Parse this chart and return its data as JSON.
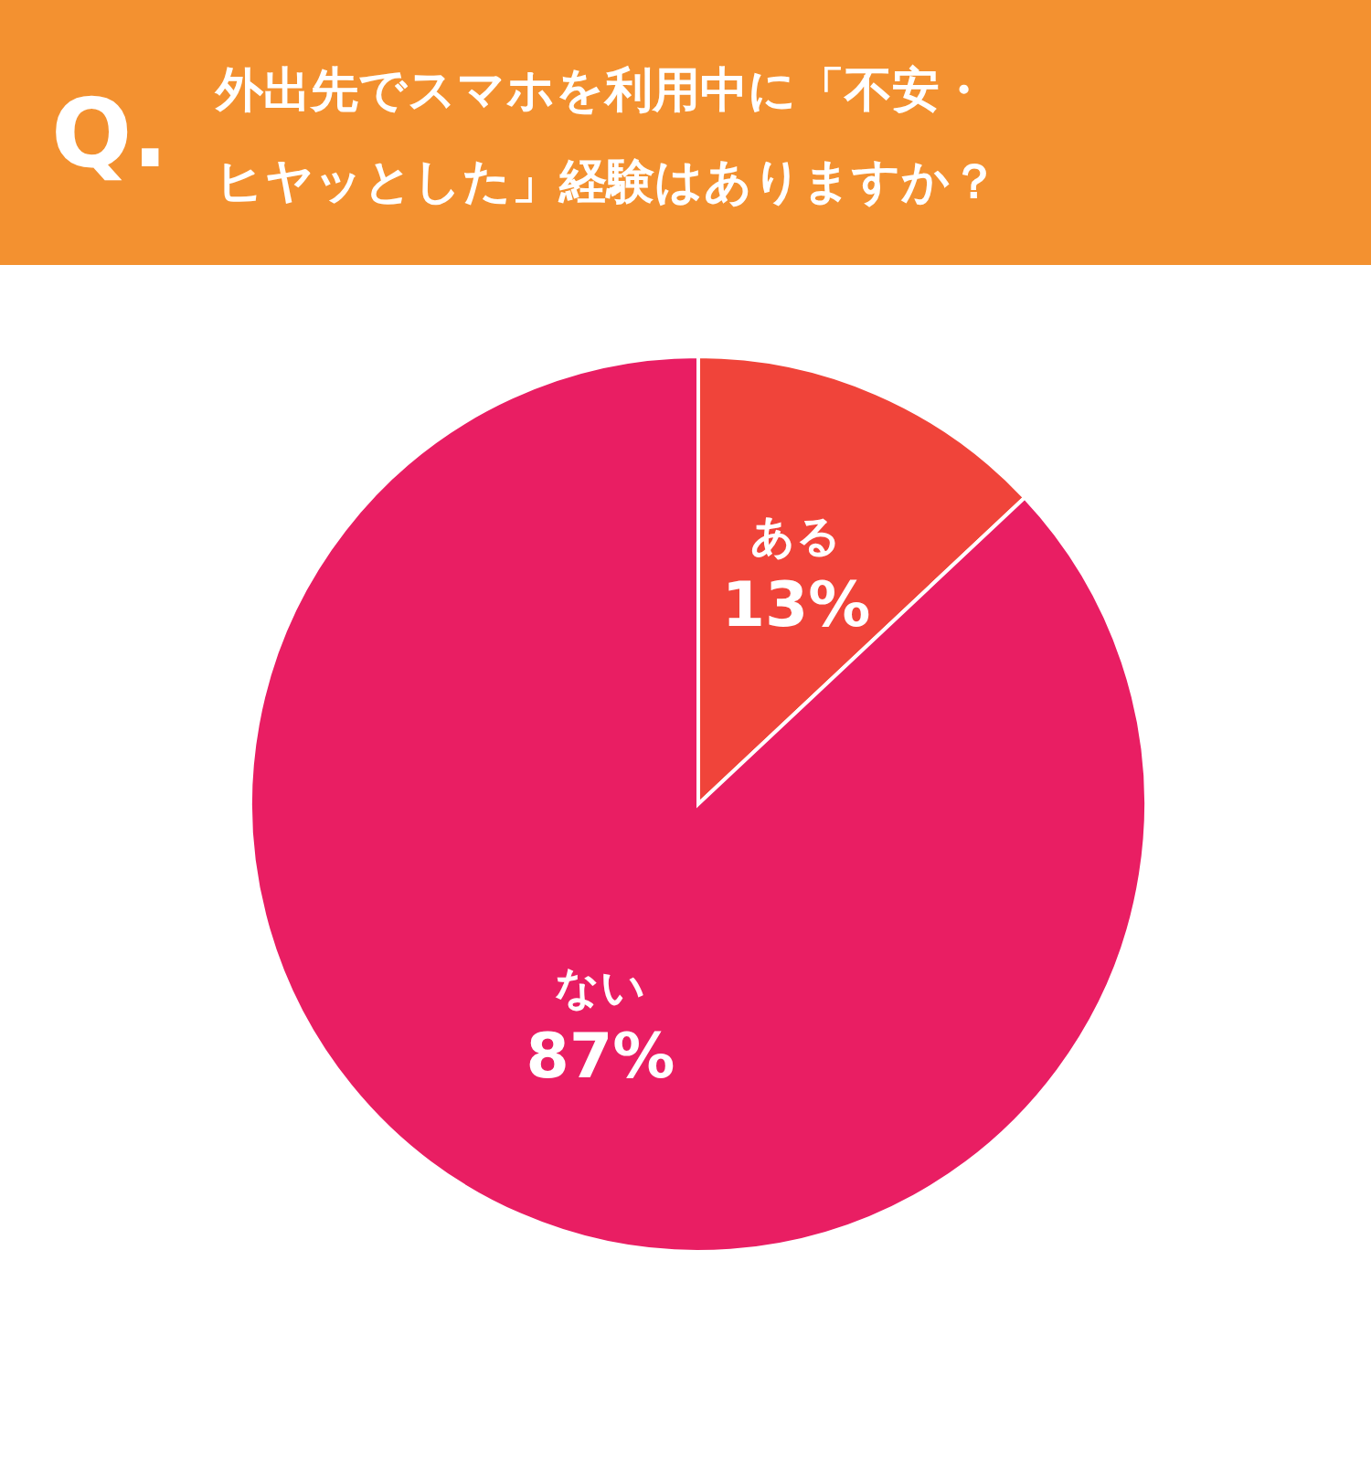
{
  "chart_data": {
    "type": "pie",
    "title": "外出先でスマホを利用中に「不安・ヒヤッとした」経験はありますか？",
    "annotations": [
      "Q."
    ],
    "categories": [
      "ある",
      "ない"
    ],
    "values": [
      13,
      87
    ],
    "colors": [
      "#f0443a",
      "#e91e63"
    ],
    "value_labels": [
      "13%",
      "87%"
    ]
  }
}
